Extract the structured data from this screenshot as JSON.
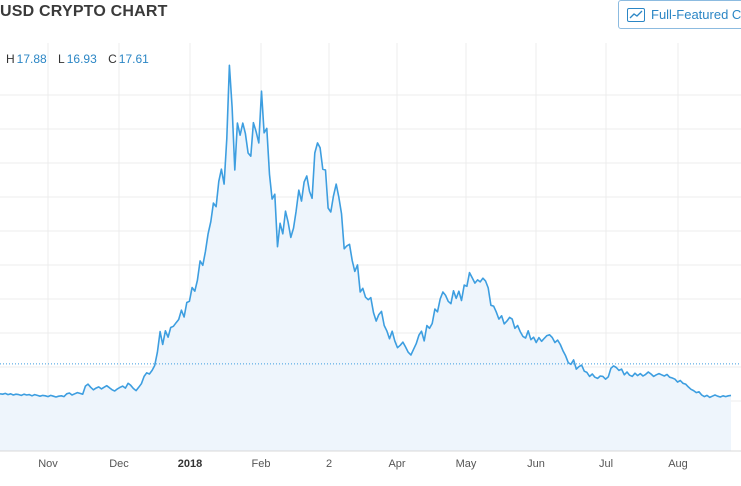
{
  "header": {
    "title": "USD CRYPTO CHART",
    "full_featured_label": "Full-Featured C"
  },
  "ohlc": {
    "high_label": "H",
    "high": "17.88",
    "low_label": "L",
    "low": "16.93",
    "close_label": "C",
    "close": "17.61"
  },
  "colors": {
    "line": "#3d9ee0",
    "fill": "#eef5fc",
    "grid": "#ececec",
    "accent": "#2b86c5"
  },
  "chart_data": {
    "type": "area",
    "x_labels": [
      "Nov",
      "Dec",
      "2018",
      "Feb",
      "2",
      "Apr",
      "May",
      "Jun",
      "Jul",
      "Aug"
    ],
    "bold_x_labels": [
      "2018"
    ],
    "series": [
      {
        "values": [
          10.2,
          10.1,
          10.3,
          10.0,
          10.2,
          9.9,
          10.1,
          10.0,
          9.8,
          10.1,
          9.9,
          10.0,
          9.7,
          10.0,
          9.8,
          9.6,
          9.8,
          9.7,
          9.5,
          9.8,
          9.6,
          9.4,
          9.6,
          9.7,
          9.5,
          10.2,
          10.4,
          9.9,
          10.2,
          10.5,
          10.3,
          10.1,
          12.1,
          12.6,
          11.8,
          11.2,
          11.6,
          11.9,
          11.4,
          11.8,
          12.2,
          11.7,
          11.2,
          10.9,
          11.4,
          11.8,
          12.1,
          11.6,
          12.8,
          12.3,
          11.5,
          11.0,
          11.8,
          12.7,
          14.5,
          15.4,
          15.1,
          16.0,
          17.2,
          20.5,
          25.6,
          22.4,
          25.8,
          24.2,
          26.6,
          26.9,
          27.8,
          28.6,
          30.9,
          29.2,
          32.8,
          33.1,
          36.5,
          35.6,
          38.3,
          43.1,
          42.0,
          45.4,
          49.8,
          52.8,
          57.4,
          56.5,
          62.8,
          65.8,
          62.1,
          73.4,
          91.5,
          81.2,
          65.6,
          77.2,
          74.2,
          77.2,
          74.6,
          69.8,
          69.0,
          77.3,
          75.1,
          72.3,
          85.1,
          74.8,
          75.9,
          64.5,
          58.4,
          59.6,
          46.6,
          52.4,
          49.8,
          55.4,
          52.7,
          48.9,
          51.2,
          55.4,
          60.6,
          57.9,
          62.6,
          64.1,
          60.3,
          58.6,
          69.8,
          72.3,
          71.1,
          65.8,
          65.6,
          56.2,
          55.2,
          59.2,
          62.1,
          58.9,
          54.8,
          46.1,
          46.8,
          47.2,
          43.2,
          40.5,
          42.1,
          35.4,
          36.3,
          34.1,
          33.5,
          34.0,
          30.3,
          28.2,
          29.8,
          30.6,
          27.1,
          25.8,
          23.8,
          25.7,
          23.3,
          21.6,
          22.2,
          23.0,
          21.8,
          20.5,
          19.8,
          21.2,
          22.6,
          24.7,
          25.7,
          23.3,
          27.1,
          26.4,
          27.6,
          31.2,
          30.5,
          33.7,
          35.4,
          34.6,
          33.1,
          32.5,
          35.7,
          33.8,
          35.6,
          33.3,
          37.1,
          36.8,
          40.2,
          38.9,
          37.6,
          38.4,
          37.9,
          38.8,
          38.1,
          36.4,
          32.1,
          31.9,
          30.5,
          28.7,
          29.5,
          27.5,
          28.2,
          29.1,
          28.7,
          26.4,
          27.1,
          25.6,
          24.4,
          24.0,
          25.8,
          23.6,
          24.2,
          22.9,
          24.1,
          23.2,
          23.9,
          24.6,
          24.8,
          24.1,
          22.9,
          23.5,
          22.4,
          20.9,
          19.6,
          17.9,
          17.5,
          18.6,
          16.3,
          16.9,
          17.3,
          15.8,
          15.5,
          14.5,
          15.1,
          14.3,
          14.0,
          14.6,
          14.5,
          13.8,
          14.4,
          16.5,
          17.1,
          16.7,
          16.0,
          16.3,
          14.9,
          15.6,
          14.8,
          14.5,
          15.3,
          14.7,
          15.2,
          14.6,
          15.0,
          15.6,
          15.1,
          14.5,
          14.9,
          15.2,
          14.9,
          14.6,
          15.0,
          14.3,
          14.1,
          13.8,
          13.1,
          13.5,
          12.8,
          12.6,
          11.9,
          11.3,
          11.0,
          10.5,
          10.7,
          9.9,
          9.5,
          9.8,
          9.3,
          9.6,
          9.9,
          9.6,
          9.4,
          9.7,
          9.5,
          9.7,
          9.8
        ]
      }
    ],
    "reference_line": 17.61,
    "ylim": [
      0,
      100
    ],
    "grid": true,
    "legend": "none"
  }
}
